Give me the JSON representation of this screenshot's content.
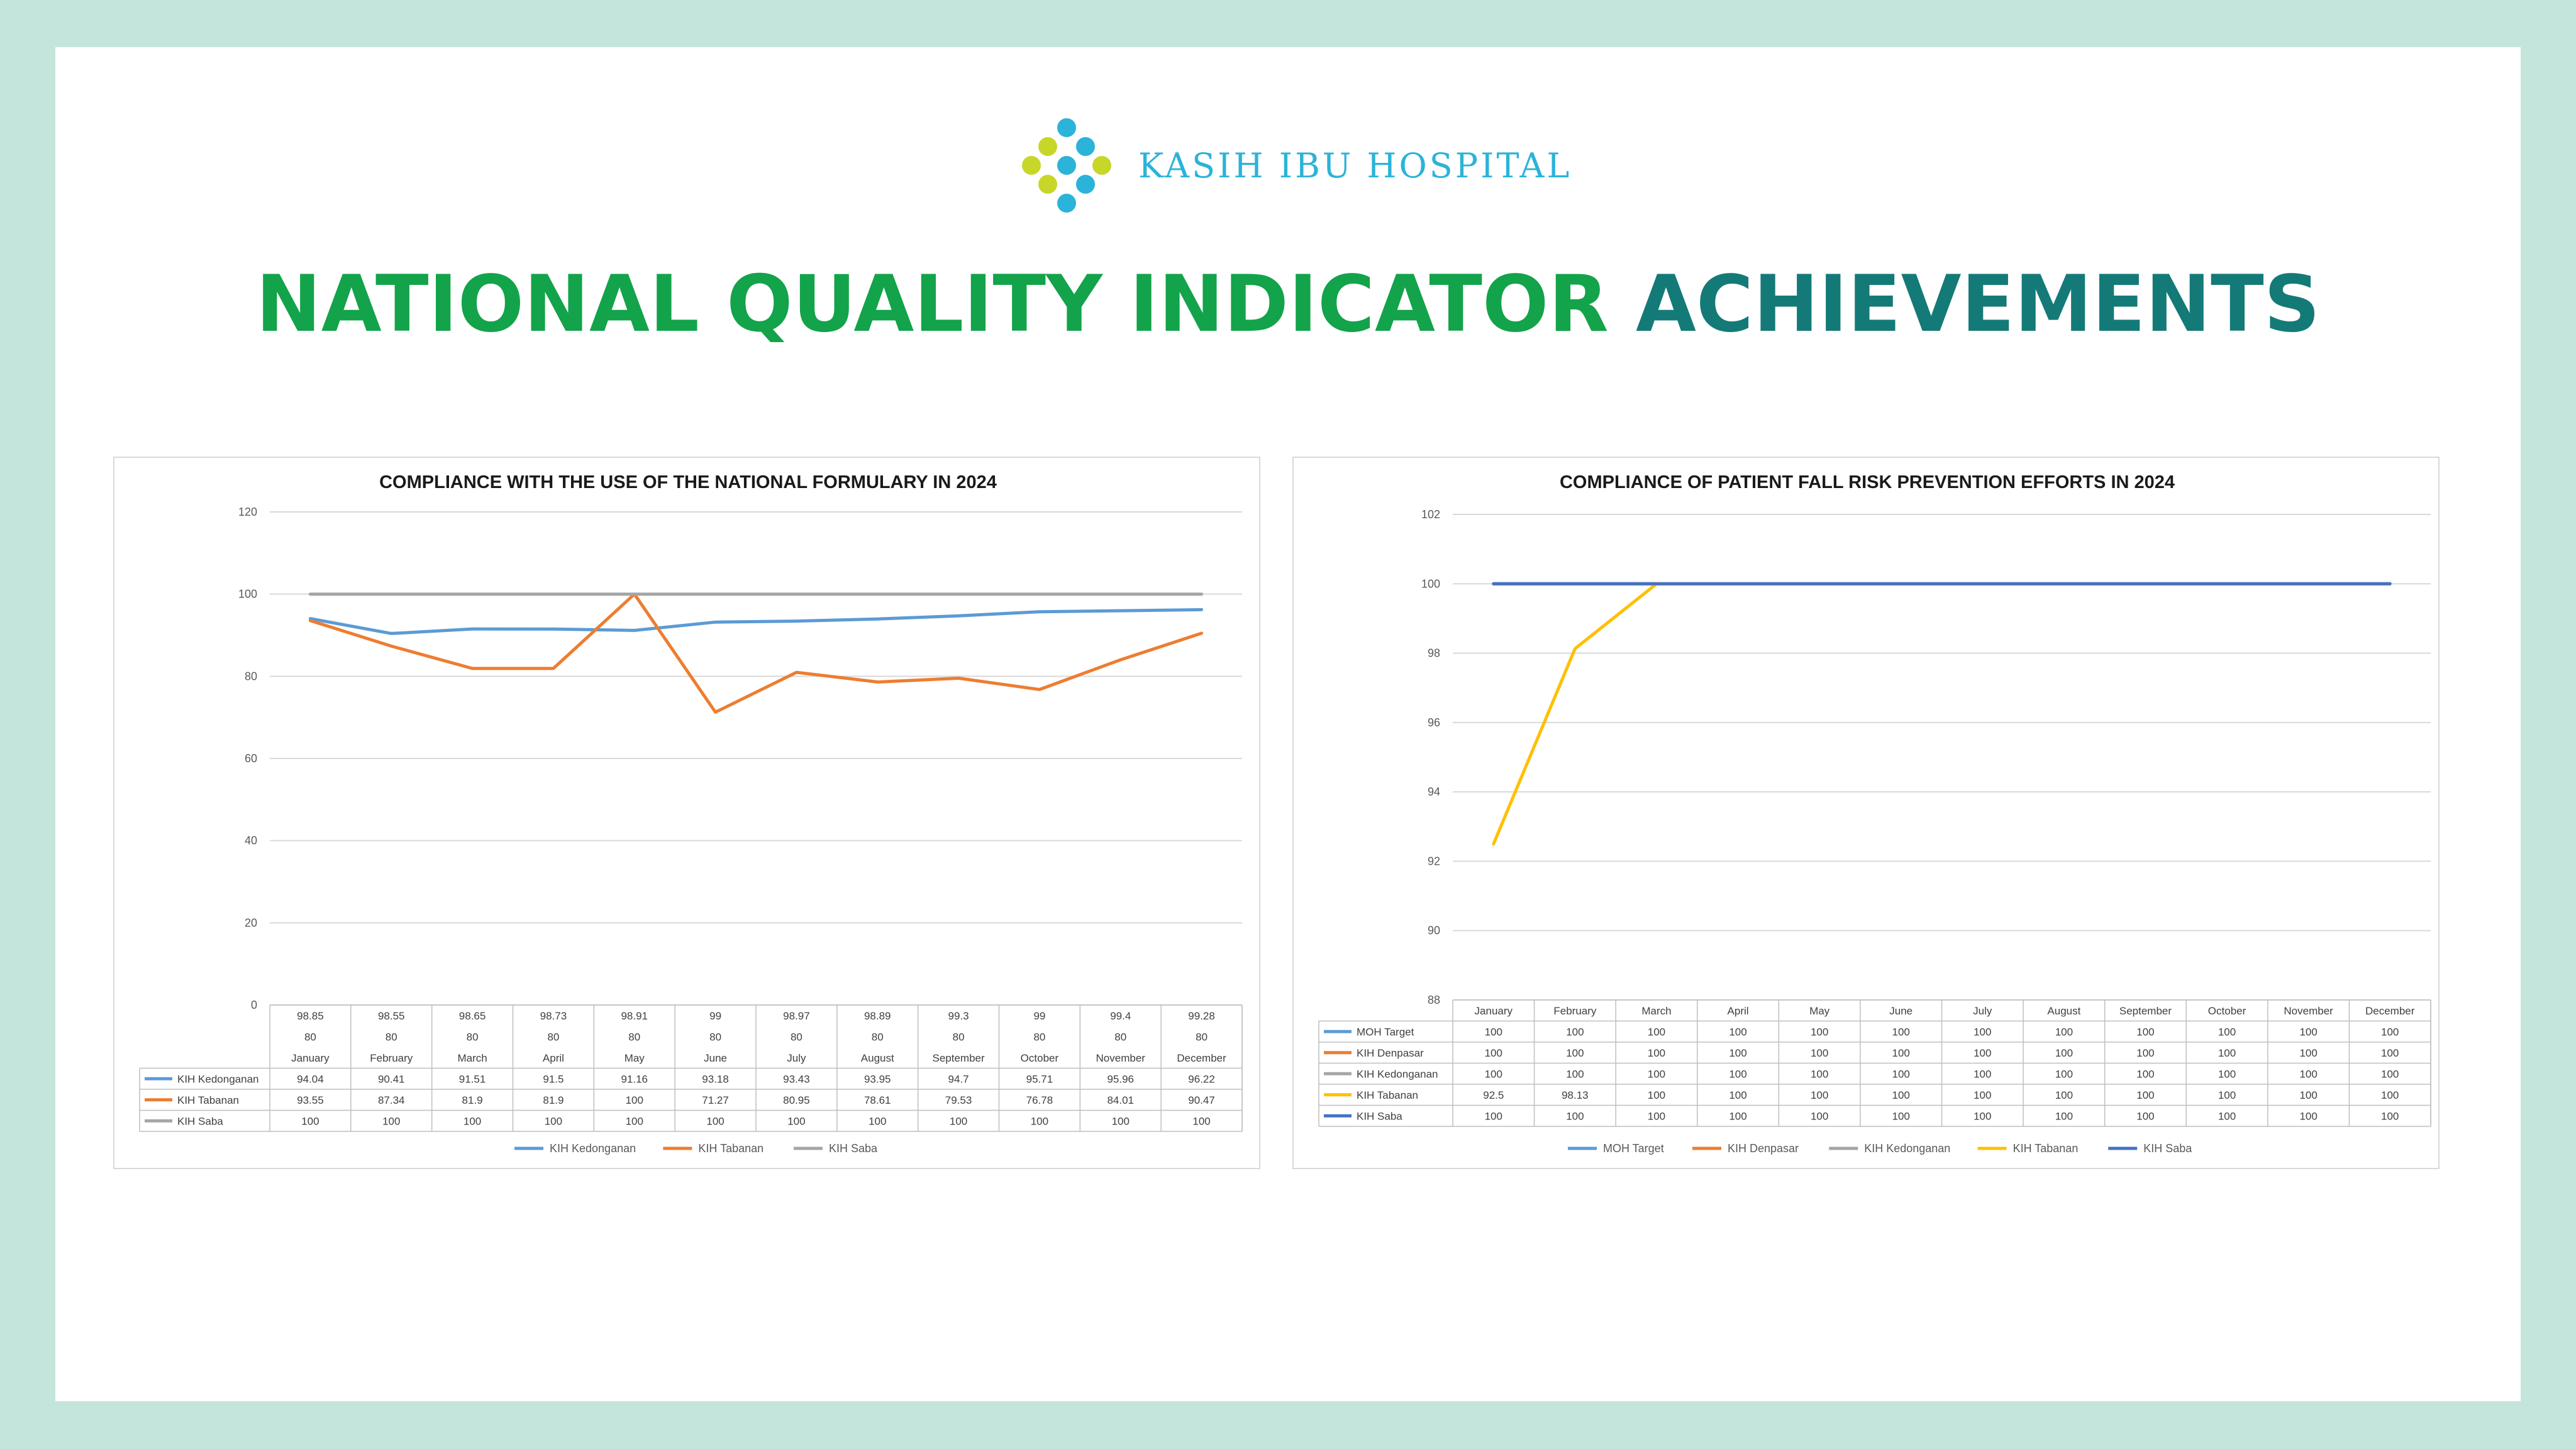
{
  "brand": {
    "name": "KASIH IBU HOSPITAL"
  },
  "heading": {
    "part1": "NATIONAL QUALITY INDICATOR",
    "part2": "ACHIEVEMENTS"
  },
  "colors": {
    "green": "#13a34a",
    "teal": "#147a78",
    "logo_blue": "#2bb3d9",
    "logo_lime": "#c8d62a"
  },
  "chart_data": [
    {
      "type": "line",
      "title": "COMPLIANCE WITH THE USE OF THE NATIONAL FORMULARY IN 2024",
      "categories": [
        "January",
        "February",
        "March",
        "April",
        "May",
        "June",
        "July",
        "August",
        "September",
        "October",
        "November",
        "December"
      ],
      "ylim": [
        0,
        120
      ],
      "yticks": [
        0,
        20,
        40,
        60,
        80,
        100,
        120
      ],
      "grid": true,
      "legend": "bottom",
      "unlabeled_rows": [
        {
          "values": [
            98.85,
            98.55,
            98.65,
            98.73,
            98.91,
            99,
            98.97,
            98.89,
            99.3,
            99,
            99.4,
            99.28
          ]
        },
        {
          "values": [
            80,
            80,
            80,
            80,
            80,
            80,
            80,
            80,
            80,
            80,
            80,
            80
          ]
        }
      ],
      "series": [
        {
          "name": "KIH Kedonganan",
          "color": "#5b9bd5",
          "values": [
            94.04,
            90.41,
            91.51,
            91.5,
            91.16,
            93.18,
            93.43,
            93.95,
            94.7,
            95.71,
            95.96,
            96.22
          ]
        },
        {
          "name": "KIH Tabanan",
          "color": "#ed7d31",
          "values": [
            93.55,
            87.34,
            81.9,
            81.9,
            100,
            71.27,
            80.95,
            78.61,
            79.53,
            76.78,
            84.01,
            90.47
          ]
        },
        {
          "name": "KIH Saba",
          "color": "#a5a5a5",
          "values": [
            100,
            100,
            100,
            100,
            100,
            100,
            100,
            100,
            100,
            100,
            100,
            100
          ]
        }
      ]
    },
    {
      "type": "line",
      "title": "COMPLIANCE OF PATIENT FALL RISK PREVENTION EFFORTS IN 2024",
      "categories": [
        "January",
        "February",
        "March",
        "April",
        "May",
        "June",
        "July",
        "August",
        "September",
        "October",
        "November",
        "December"
      ],
      "ylim": [
        88,
        102
      ],
      "yticks": [
        88,
        90,
        92,
        94,
        96,
        98,
        100,
        102
      ],
      "grid": true,
      "legend": "bottom",
      "series": [
        {
          "name": "MOH Target",
          "color": "#5b9bd5",
          "values": [
            100,
            100,
            100,
            100,
            100,
            100,
            100,
            100,
            100,
            100,
            100,
            100
          ]
        },
        {
          "name": "KIH Denpasar",
          "color": "#ed7d31",
          "values": [
            100,
            100,
            100,
            100,
            100,
            100,
            100,
            100,
            100,
            100,
            100,
            100
          ]
        },
        {
          "name": "KIH Kedonganan",
          "color": "#a5a5a5",
          "values": [
            100,
            100,
            100,
            100,
            100,
            100,
            100,
            100,
            100,
            100,
            100,
            100
          ]
        },
        {
          "name": "KIH Tabanan",
          "color": "#ffc000",
          "values": [
            92.5,
            98.13,
            100,
            100,
            100,
            100,
            100,
            100,
            100,
            100,
            100,
            100
          ]
        },
        {
          "name": "KIH Saba",
          "color": "#4472c4",
          "values": [
            100,
            100,
            100,
            100,
            100,
            100,
            100,
            100,
            100,
            100,
            100,
            100
          ]
        }
      ]
    }
  ]
}
